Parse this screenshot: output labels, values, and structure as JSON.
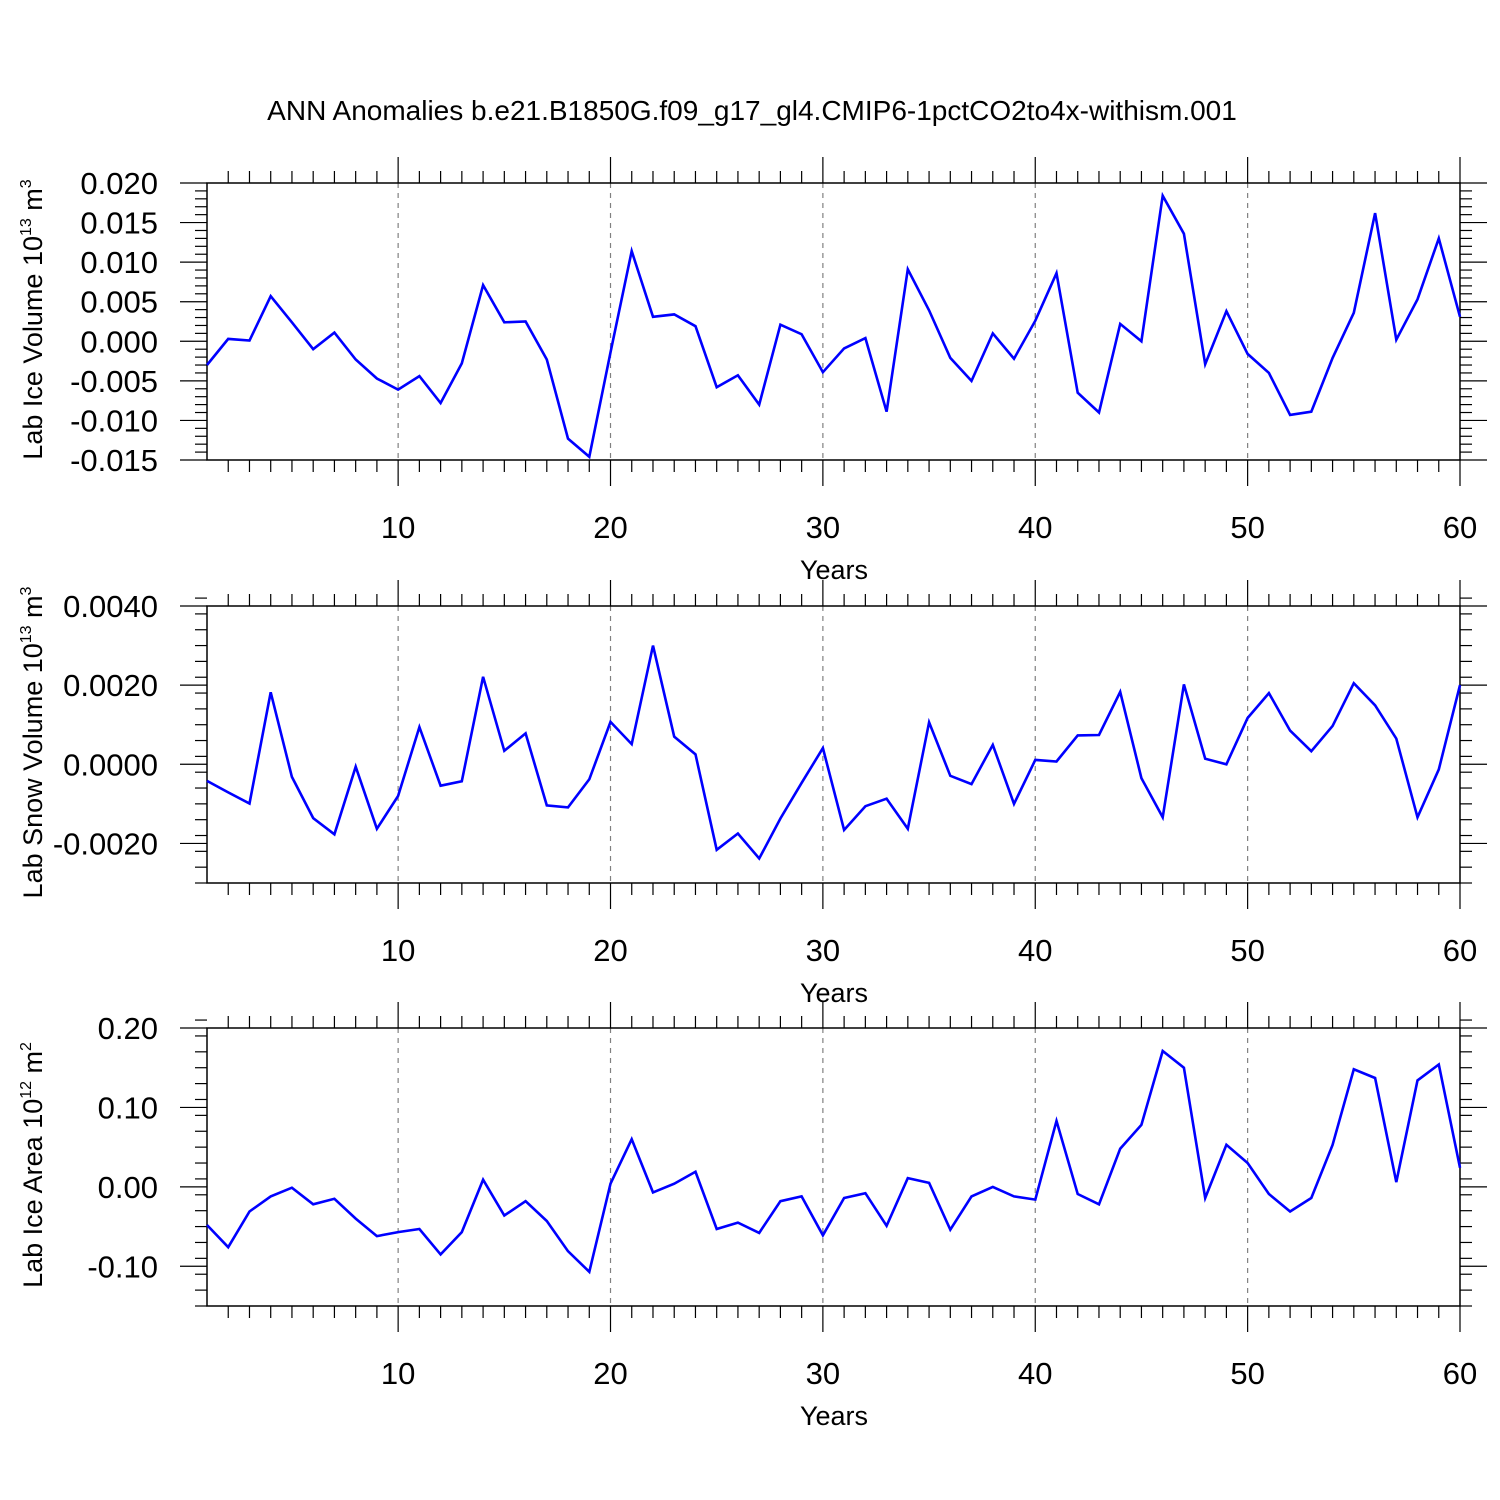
{
  "figure": {
    "title": "ANN Anomalies b.e21.B1850G.f09_g17_gl4.CMIP6-1pctCO2to4x-withism.001"
  },
  "colors": {
    "series": "#0000ff",
    "axis": "#000000",
    "grid": "#808080"
  },
  "chart_data": [
    {
      "type": "line",
      "xlabel": "Years",
      "ylabel": {
        "text": "Lab Ice Volume 10",
        "sup": "13",
        "unit": " m",
        "unit_sup": "3"
      },
      "xlim": [
        1,
        60
      ],
      "ylim": [
        -0.015,
        0.02
      ],
      "xticks": [
        10,
        20,
        30,
        40,
        50,
        60
      ],
      "xtick_labels": [
        "10",
        "20",
        "30",
        "40",
        "50",
        "60"
      ],
      "yticks": [
        -0.015,
        -0.01,
        -0.005,
        0.0,
        0.005,
        0.01,
        0.015,
        0.02
      ],
      "ytick_labels": [
        "-0.015",
        "-0.010",
        "-0.005",
        "0.000",
        "0.005",
        "0.010",
        "0.015",
        "0.020"
      ],
      "yminor_step": 0.001,
      "grid": "dashed vertical at major x ticks",
      "series": [
        {
          "x": [
            1,
            2,
            3,
            4,
            5,
            6,
            7,
            8,
            9,
            10,
            11,
            12,
            13,
            14,
            15,
            16,
            17,
            18,
            19,
            20,
            21,
            22,
            23,
            24,
            25,
            26,
            27,
            28,
            29,
            30,
            31,
            32,
            33,
            34,
            35,
            36,
            37,
            38,
            39,
            40,
            41,
            42,
            43,
            44,
            45,
            46,
            47,
            48,
            49,
            50,
            51,
            52,
            53,
            54,
            55,
            56,
            57,
            58,
            59,
            60
          ],
          "values": [
            -0.003,
            0.0003,
            0.0001,
            0.0057,
            0.0024,
            -0.001,
            0.0011,
            -0.0023,
            -0.0047,
            -0.0061,
            -0.0044,
            -0.0078,
            -0.0028,
            0.0071,
            0.0024,
            0.0025,
            -0.0023,
            -0.0123,
            -0.0146,
            -0.0014,
            0.0114,
            0.0031,
            0.0034,
            0.0019,
            -0.0058,
            -0.0043,
            -0.008,
            0.0021,
            0.0009,
            -0.0039,
            -0.0009,
            0.0004,
            -0.0089,
            0.0091,
            0.0039,
            -0.0021,
            -0.005,
            0.001,
            -0.0022,
            0.0026,
            0.0086,
            -0.0065,
            -0.009,
            0.0022,
            0.0,
            0.0184,
            0.0136,
            -0.0029,
            0.0038,
            -0.0016,
            -0.004,
            -0.0093,
            -0.0089,
            -0.0021,
            0.0036,
            0.0162,
            0.0002,
            0.0053,
            0.013,
            0.0031
          ]
        }
      ]
    },
    {
      "type": "line",
      "xlabel": "Years",
      "ylabel": {
        "text": "Lab Snow Volume 10",
        "sup": "13",
        "unit": " m",
        "unit_sup": "3"
      },
      "xlim": [
        1,
        60
      ],
      "ylim": [
        -0.003,
        0.004
      ],
      "xticks": [
        10,
        20,
        30,
        40,
        50,
        60
      ],
      "xtick_labels": [
        "10",
        "20",
        "30",
        "40",
        "50",
        "60"
      ],
      "yticks": [
        -0.002,
        0.0,
        0.002,
        0.004
      ],
      "ytick_labels": [
        "-0.0020",
        "0.0000",
        "0.0020",
        "0.0040"
      ],
      "yminor_step": 0.0004,
      "grid": "dashed vertical at major x ticks",
      "series": [
        {
          "x": [
            1,
            2,
            3,
            4,
            5,
            6,
            7,
            8,
            9,
            10,
            11,
            12,
            13,
            14,
            15,
            16,
            17,
            18,
            19,
            20,
            21,
            22,
            23,
            24,
            25,
            26,
            27,
            28,
            29,
            30,
            31,
            32,
            33,
            34,
            35,
            36,
            37,
            38,
            39,
            40,
            41,
            42,
            43,
            44,
            45,
            46,
            47,
            48,
            49,
            50,
            51,
            52,
            53,
            54,
            55,
            56,
            57,
            58,
            59,
            60
          ],
          "values": [
            -0.00042,
            -0.00071,
            -0.00099,
            0.00182,
            -0.00032,
            -0.00136,
            -0.00177,
            -6e-05,
            -0.00163,
            -0.0008,
            0.00094,
            -0.00054,
            -0.00043,
            0.00221,
            0.00034,
            0.00078,
            -0.00104,
            -0.00109,
            -0.00038,
            0.00107,
            0.00051,
            0.003,
            0.0007,
            0.00025,
            -0.00216,
            -0.00175,
            -0.00238,
            -0.00137,
            -0.00047,
            0.00041,
            -0.00166,
            -0.00106,
            -0.00087,
            -0.00163,
            0.00106,
            -0.00029,
            -0.0005,
            0.00049,
            -0.001,
            0.00011,
            7e-05,
            0.00073,
            0.00074,
            0.00183,
            -0.00035,
            -0.00134,
            0.00202,
            0.00014,
            0.0,
            0.00117,
            0.0018,
            0.00085,
            0.00033,
            0.00097,
            0.00205,
            0.00149,
            0.00065,
            -0.00134,
            -0.00013,
            0.002
          ]
        }
      ]
    },
    {
      "type": "line",
      "xlabel": "Years",
      "ylabel": {
        "text": "Lab Ice Area 10",
        "sup": "12",
        "unit": " m",
        "unit_sup": "2"
      },
      "xlim": [
        1,
        60
      ],
      "ylim": [
        -0.15,
        0.2
      ],
      "xticks": [
        10,
        20,
        30,
        40,
        50,
        60
      ],
      "xtick_labels": [
        "10",
        "20",
        "30",
        "40",
        "50",
        "60"
      ],
      "yticks": [
        -0.1,
        0.0,
        0.1,
        0.2
      ],
      "ytick_labels": [
        "-0.10",
        "0.00",
        "0.10",
        "0.20"
      ],
      "yminor_step": 0.02,
      "grid": "dashed vertical at major x ticks",
      "series": [
        {
          "x": [
            1,
            2,
            3,
            4,
            5,
            6,
            7,
            8,
            9,
            10,
            11,
            12,
            13,
            14,
            15,
            16,
            17,
            18,
            19,
            20,
            21,
            22,
            23,
            24,
            25,
            26,
            27,
            28,
            29,
            30,
            31,
            32,
            33,
            34,
            35,
            36,
            37,
            38,
            39,
            40,
            41,
            42,
            43,
            44,
            45,
            46,
            47,
            48,
            49,
            50,
            51,
            52,
            53,
            54,
            55,
            56,
            57,
            58,
            59,
            60
          ],
          "values": [
            -0.048,
            -0.076,
            -0.031,
            -0.012,
            -0.001,
            -0.022,
            -0.015,
            -0.04,
            -0.062,
            -0.057,
            -0.053,
            -0.085,
            -0.057,
            0.009,
            -0.036,
            -0.018,
            -0.043,
            -0.081,
            -0.107,
            0.004,
            0.06,
            -0.007,
            0.004,
            0.019,
            -0.053,
            -0.045,
            -0.058,
            -0.018,
            -0.012,
            -0.061,
            -0.014,
            -0.008,
            -0.049,
            0.011,
            0.005,
            -0.054,
            -0.012,
            0.0,
            -0.012,
            -0.016,
            0.083,
            -0.009,
            -0.022,
            0.048,
            0.078,
            0.171,
            0.15,
            -0.014,
            0.053,
            0.03,
            -0.009,
            -0.031,
            -0.014,
            0.053,
            0.148,
            0.137,
            0.006,
            0.134,
            0.154,
            0.024
          ]
        }
      ]
    }
  ]
}
